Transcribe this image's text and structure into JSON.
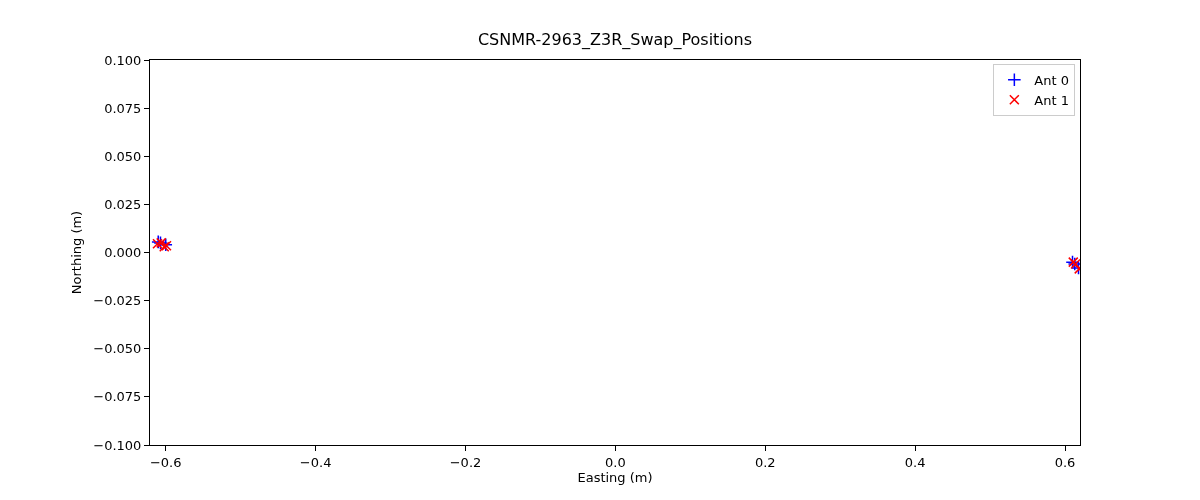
{
  "chart_data": {
    "type": "scatter",
    "title": "CSNMR-2963_Z3R_Swap_Positions",
    "xlabel": "Easting (m)",
    "ylabel": "Northing (m)",
    "series": [
      {
        "name": "Ant 0",
        "color": "#0000ff",
        "marker": "cross",
        "x": [
          -0.61,
          -0.607,
          -0.6,
          0.61,
          0.613,
          0.618
        ],
        "values": [
          0.0055,
          0.005,
          0.004,
          -0.005,
          -0.006,
          -0.008
        ]
      },
      {
        "name": "Ant 1",
        "color": "#ff0000",
        "marker": "x",
        "x": [
          -0.611,
          -0.606,
          -0.602,
          -0.599,
          0.611,
          0.614,
          0.619
        ],
        "values": [
          0.0045,
          0.005,
          0.003,
          0.0035,
          -0.005,
          -0.006,
          -0.0085
        ]
      }
    ],
    "xlim": [
      -0.621,
      0.62
    ],
    "ylim": [
      -0.1,
      0.1
    ],
    "xticks": [
      {
        "value": -0.6,
        "label": "−0.6"
      },
      {
        "value": -0.4,
        "label": "−0.4"
      },
      {
        "value": -0.2,
        "label": "−0.2"
      },
      {
        "value": 0,
        "label": "0.0"
      },
      {
        "value": 0.2,
        "label": "0.2"
      },
      {
        "value": 0.4,
        "label": "0.4"
      },
      {
        "value": 0.6,
        "label": "0.6"
      }
    ],
    "yticks": [
      {
        "value": -0.1,
        "label": "−0.100"
      },
      {
        "value": -0.075,
        "label": "−0.075"
      },
      {
        "value": -0.05,
        "label": "−0.050"
      },
      {
        "value": -0.025,
        "label": "−0.025"
      },
      {
        "value": 0,
        "label": "0.000"
      },
      {
        "value": 0.025,
        "label": "0.025"
      },
      {
        "value": 0.05,
        "label": "0.050"
      },
      {
        "value": 0.075,
        "label": "0.075"
      },
      {
        "value": 0.1,
        "label": "0.100"
      }
    ],
    "grid": false,
    "legend": "top right"
  }
}
